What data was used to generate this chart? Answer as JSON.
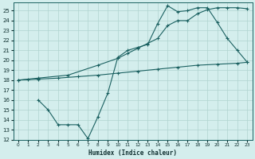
{
  "xlabel": "Humidex (Indice chaleur)",
  "bg_color": "#d4eeed",
  "grid_color": "#b0d4d0",
  "line_color": "#1a6060",
  "xlim": [
    -0.5,
    23.5
  ],
  "ylim": [
    12,
    25.8
  ],
  "yticks": [
    12,
    13,
    14,
    15,
    16,
    17,
    18,
    19,
    20,
    21,
    22,
    23,
    24,
    25
  ],
  "xticks": [
    0,
    1,
    2,
    3,
    4,
    5,
    6,
    7,
    8,
    9,
    10,
    11,
    12,
    13,
    14,
    15,
    16,
    17,
    18,
    19,
    20,
    21,
    22,
    23
  ],
  "line1_x": [
    0,
    1,
    2,
    5,
    8,
    10,
    11,
    12,
    13,
    14,
    15,
    16,
    17,
    18,
    19,
    20,
    21,
    22,
    23
  ],
  "line1_y": [
    18.0,
    18.1,
    18.2,
    18.5,
    19.5,
    20.2,
    20.7,
    21.2,
    21.7,
    22.2,
    23.5,
    24.0,
    24.0,
    24.7,
    25.1,
    25.3,
    25.3,
    25.3,
    25.2
  ],
  "line2_x": [
    0,
    2,
    4,
    6,
    8,
    10,
    12,
    14,
    16,
    18,
    20,
    22,
    23
  ],
  "line2_y": [
    18.0,
    18.1,
    18.2,
    18.35,
    18.5,
    18.7,
    18.9,
    19.1,
    19.3,
    19.5,
    19.6,
    19.7,
    19.8
  ],
  "line3_x": [
    2,
    3,
    4,
    5,
    6,
    7,
    8,
    9,
    10,
    11,
    12,
    13,
    14,
    15,
    16,
    17,
    18,
    19,
    20,
    21,
    22,
    23
  ],
  "line3_y": [
    16.0,
    15.0,
    13.5,
    13.5,
    13.5,
    12.1,
    14.3,
    16.7,
    20.3,
    21.0,
    21.3,
    21.6,
    23.7,
    25.5,
    24.9,
    25.0,
    25.3,
    25.3,
    23.8,
    22.2,
    21.0,
    19.8
  ]
}
